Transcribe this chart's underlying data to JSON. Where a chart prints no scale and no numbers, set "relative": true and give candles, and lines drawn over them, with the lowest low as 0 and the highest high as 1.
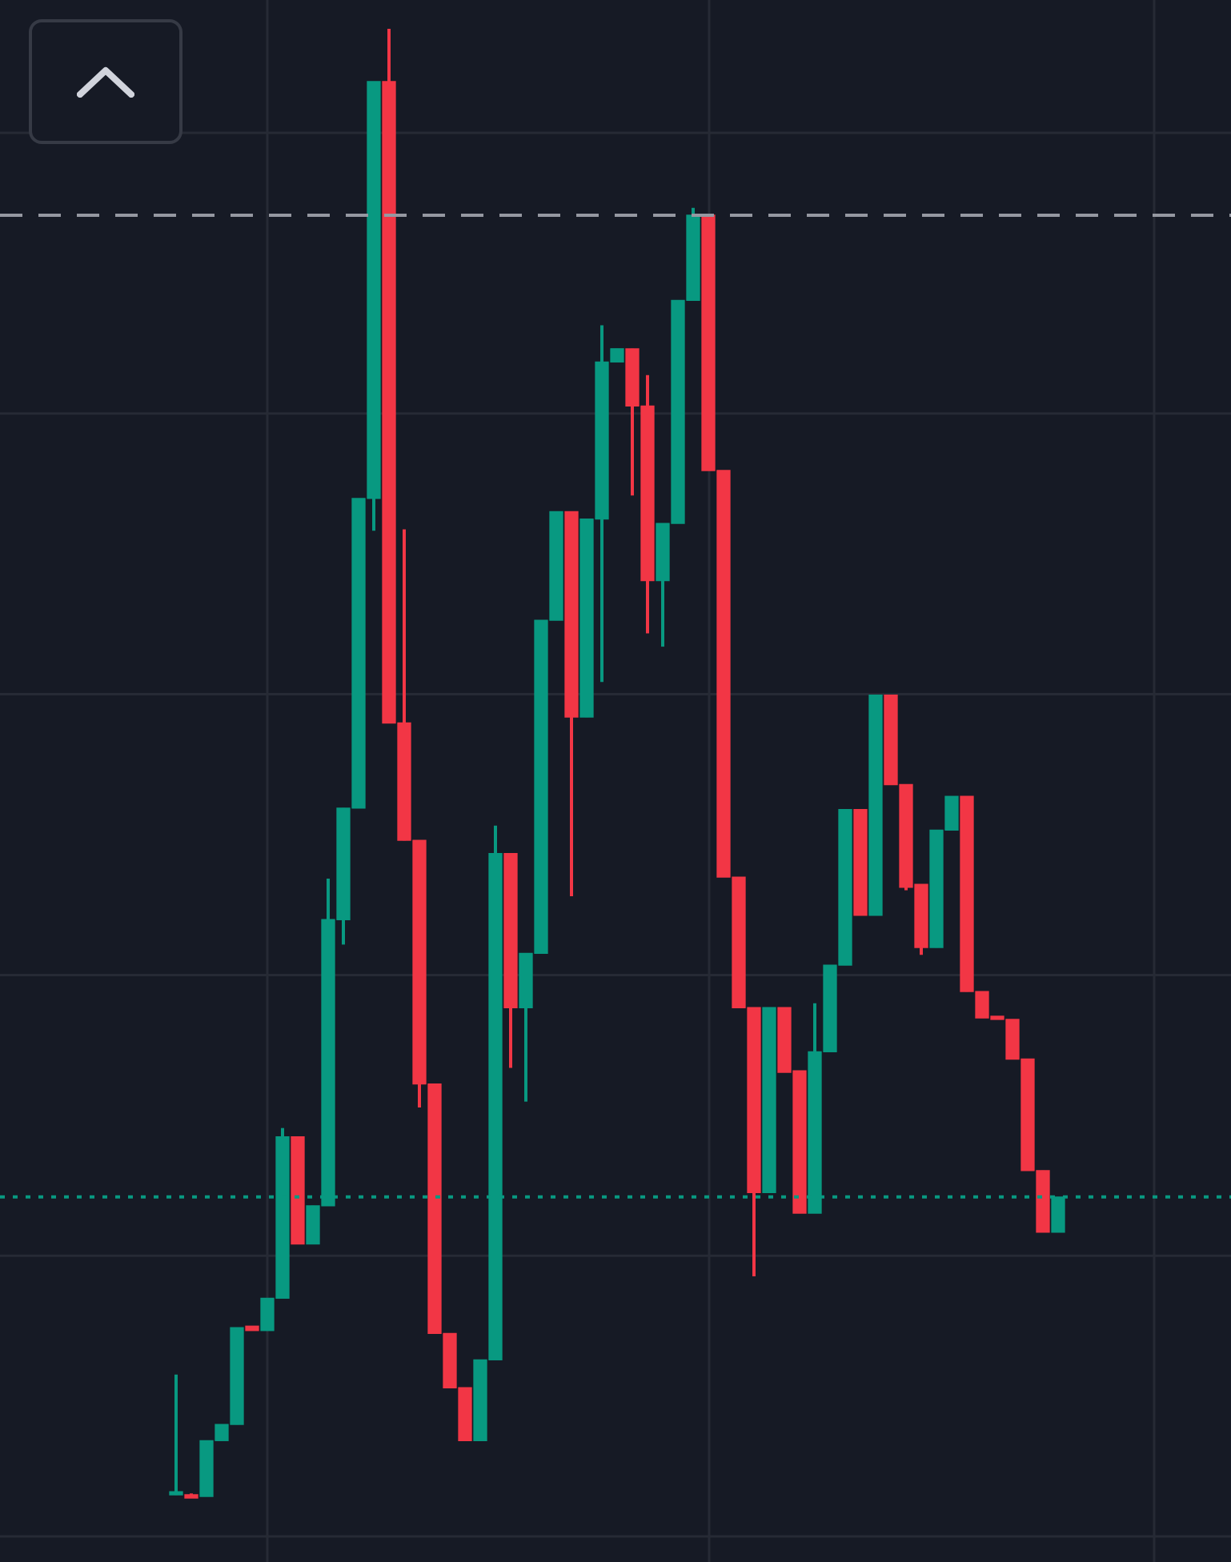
{
  "chart_data": {
    "type": "candlestick",
    "relative": true,
    "grid": true,
    "categories": [
      null,
      null,
      null,
      null,
      null,
      null,
      null,
      null,
      null,
      null,
      null,
      null,
      null,
      null,
      null,
      null,
      null,
      null,
      null,
      null,
      null,
      null,
      null,
      null,
      null,
      null,
      null,
      null,
      null,
      null,
      null,
      null,
      null,
      null,
      null,
      null,
      null,
      null,
      null,
      null,
      null,
      null,
      null,
      null,
      null,
      null,
      null,
      null,
      null,
      null,
      null,
      null,
      null,
      null,
      null,
      null,
      null,
      null,
      null
    ],
    "ohlc": [
      [
        0.001,
        0.083,
        0.001,
        0.003
      ],
      [
        0.002,
        0.002,
        0,
        0
      ],
      [
        0,
        0.038,
        0,
        0.038
      ],
      [
        0.038,
        0.049,
        0.038,
        0.049
      ],
      [
        0.049,
        0.115,
        0.049,
        0.115
      ],
      [
        0.116,
        0.116,
        0.113,
        0.113
      ],
      [
        0.113,
        0.135,
        0.113,
        0.135
      ],
      [
        0.135,
        0.251,
        0.135,
        0.245
      ],
      [
        0.245,
        0.245,
        0.172,
        0.172
      ],
      [
        0.172,
        0.198,
        0.172,
        0.198
      ],
      [
        0.198,
        0.421,
        0.198,
        0.393
      ],
      [
        0.393,
        0.469,
        0.376,
        0.469
      ],
      [
        0.469,
        0.68,
        0.469,
        0.68
      ],
      [
        0.68,
        0.964,
        0.658,
        0.964
      ],
      [
        0.964,
        1,
        0.527,
        0.527
      ],
      [
        0.527,
        0.659,
        0.447,
        0.447
      ],
      [
        0.447,
        0.447,
        0.265,
        0.281
      ],
      [
        0.281,
        0.281,
        0.111,
        0.111
      ],
      [
        0.111,
        0.111,
        0.074,
        0.074
      ],
      [
        0.074,
        0.074,
        0.038,
        0.038
      ],
      [
        0.038,
        0.093,
        0.038,
        0.093
      ],
      [
        0.093,
        0.457,
        0.093,
        0.438
      ],
      [
        0.438,
        0.438,
        0.292,
        0.333
      ],
      [
        0.333,
        0.37,
        0.269,
        0.37
      ],
      [
        0.37,
        0.597,
        0.37,
        0.597
      ],
      [
        0.597,
        0.671,
        0.597,
        0.671
      ],
      [
        0.671,
        0.671,
        0.409,
        0.531
      ],
      [
        0.531,
        0.666,
        0.531,
        0.666
      ],
      [
        0.666,
        0.798,
        0.555,
        0.773
      ],
      [
        0.773,
        0.782,
        0.773,
        0.782
      ],
      [
        0.782,
        0.782,
        0.682,
        0.743
      ],
      [
        0.743,
        0.764,
        0.588,
        0.624
      ],
      [
        0.624,
        0.663,
        0.579,
        0.663
      ],
      [
        0.663,
        0.815,
        0.663,
        0.815
      ],
      [
        0.815,
        0.878,
        0.815,
        0.873
      ],
      [
        0.873,
        0.873,
        0.699,
        0.699
      ],
      [
        0.699,
        0.699,
        0.422,
        0.422
      ],
      [
        0.422,
        0.422,
        0.333,
        0.333
      ],
      [
        0.333,
        0.333,
        0.15,
        0.207
      ],
      [
        0.207,
        0.333,
        0.207,
        0.333
      ],
      [
        0.333,
        0.333,
        0.289,
        0.289
      ],
      [
        0.29,
        0.29,
        0.193,
        0.193
      ],
      [
        0.193,
        0.336,
        0.193,
        0.303
      ],
      [
        0.303,
        0.362,
        0.303,
        0.362
      ],
      [
        0.362,
        0.468,
        0.362,
        0.468
      ],
      [
        0.468,
        0.468,
        0.396,
        0.396
      ],
      [
        0.396,
        0.546,
        0.396,
        0.546
      ],
      [
        0.546,
        0.546,
        0.485,
        0.485
      ],
      [
        0.485,
        0.485,
        0.413,
        0.415
      ],
      [
        0.417,
        0.417,
        0.369,
        0.374
      ],
      [
        0.374,
        0.454,
        0.374,
        0.454
      ],
      [
        0.454,
        0.477,
        0.454,
        0.477
      ],
      [
        0.477,
        0.477,
        0.344,
        0.344
      ],
      [
        0.344,
        0.344,
        0.326,
        0.326
      ],
      [
        0.326,
        0.326,
        0.325,
        0.325
      ],
      [
        0.325,
        0.325,
        0.298,
        0.298
      ],
      [
        0.298,
        0.298,
        0.222,
        0.222
      ],
      [
        0.222,
        0.222,
        0.18,
        0.18
      ],
      [
        0.18,
        0.204,
        0.18,
        0.204
      ]
    ],
    "colors": [
      "#089981",
      "#f23645",
      "#089981",
      "#089981",
      "#089981",
      "#f23645",
      "#089981",
      "#089981",
      "#f23645",
      "#089981",
      "#089981",
      "#089981",
      "#089981",
      "#089981",
      "#f23645",
      "#f23645",
      "#f23645",
      "#f23645",
      "#f23645",
      "#f23645",
      "#089981",
      "#089981",
      "#f23645",
      "#089981",
      "#089981",
      "#089981",
      "#f23645",
      "#089981",
      "#089981",
      "#089981",
      "#f23645",
      "#f23645",
      "#089981",
      "#089981",
      "#089981",
      "#f23645",
      "#f23645",
      "#f23645",
      "#f23645",
      "#089981",
      "#f23645",
      "#f23645",
      "#089981",
      "#089981",
      "#089981",
      "#f23645",
      "#089981",
      "#f23645",
      "#f23645",
      "#f23645",
      "#089981",
      "#089981",
      "#f23645",
      "#f23645",
      "#f23645",
      "#f23645",
      "#f23645",
      "#f23645",
      "#089981"
    ],
    "ref_lines": [
      {
        "axis": "y",
        "value": 0.873,
        "color": "#9598a1",
        "line_style": "dashed"
      },
      {
        "axis": "y",
        "value": 0.204,
        "color": "#089981",
        "line_style": "dotted"
      }
    ]
  }
}
